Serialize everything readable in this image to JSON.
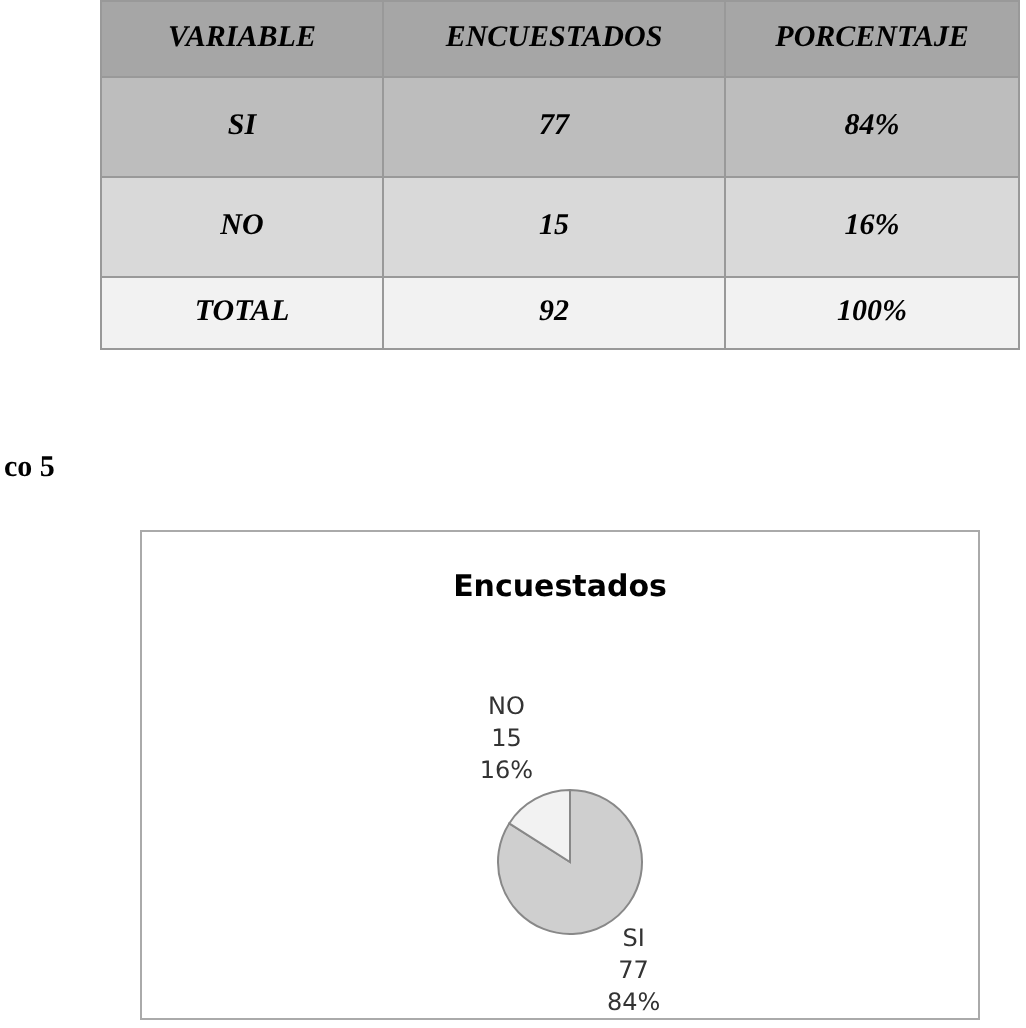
{
  "chart_data": {
    "type": "pie",
    "title": "Encuestados",
    "categories": [
      "SI",
      "NO"
    ],
    "values": [
      84,
      16
    ],
    "colors": [
      "#cfcfcf",
      "#f2f2f2"
    ],
    "value_labels": [
      "77\n84%",
      "15\n16%"
    ],
    "annotations": [
      "VARIABLE",
      "ENCUESTADOS",
      "PORCENTAJE",
      "77",
      "84%",
      "15",
      "16%",
      "TOTAL",
      "92",
      "100%",
      "co 5"
    ]
  }
}
